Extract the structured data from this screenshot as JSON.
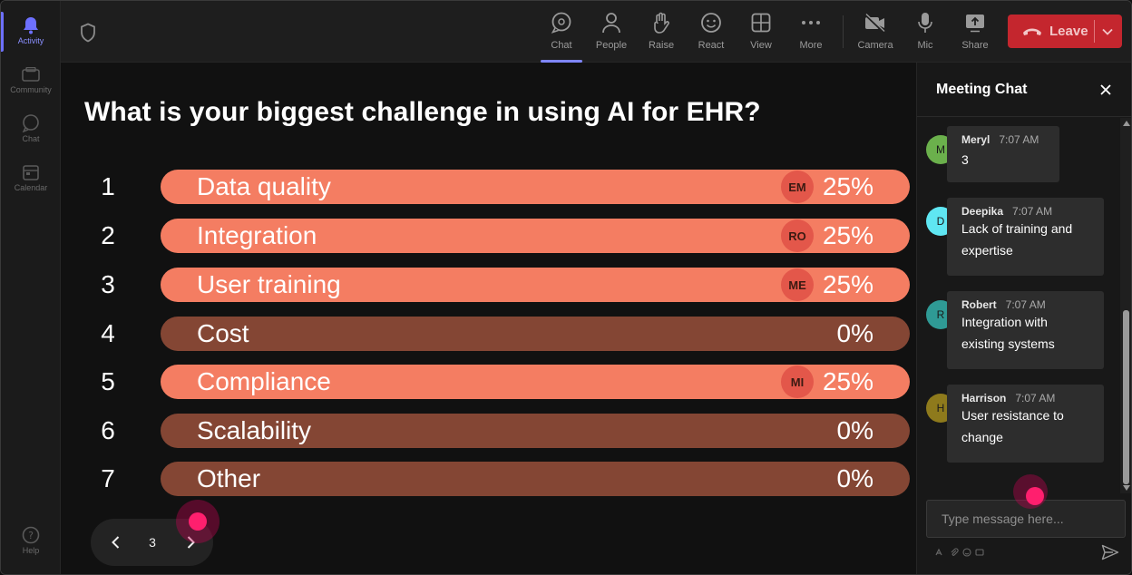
{
  "rail": {
    "items": [
      {
        "label": "Activity",
        "icon": "bell-icon"
      },
      {
        "label": "Community",
        "icon": "community-icon"
      },
      {
        "label": "Chat",
        "icon": "chat-icon"
      },
      {
        "label": "Calendar",
        "icon": "calendar-icon"
      }
    ],
    "help": {
      "label": "Help",
      "icon": "help-icon"
    }
  },
  "toolbar": {
    "buttons": [
      {
        "label": "Chat",
        "icon": "chat-icon"
      },
      {
        "label": "People",
        "icon": "people-icon"
      },
      {
        "label": "Raise",
        "icon": "raise-hand-icon"
      },
      {
        "label": "React",
        "icon": "smiley-icon"
      },
      {
        "label": "View",
        "icon": "grid-view-icon"
      },
      {
        "label": "More",
        "icon": "more-icon"
      },
      {
        "label": "Camera",
        "icon": "camera-off-icon"
      },
      {
        "label": "Mic",
        "icon": "mic-icon"
      },
      {
        "label": "Share",
        "icon": "share-icon"
      }
    ],
    "leave_label": "Leave"
  },
  "poll": {
    "question": "What is your biggest challenge in using AI for EHR?",
    "options": [
      {
        "num": "1",
        "label": "Data quality",
        "percent": "25%",
        "voter": "EM"
      },
      {
        "num": "2",
        "label": "Integration",
        "percent": "25%",
        "voter": "RO"
      },
      {
        "num": "3",
        "label": "User training",
        "percent": "25%",
        "voter": "ME"
      },
      {
        "num": "4",
        "label": "Cost",
        "percent": "0%",
        "voter": ""
      },
      {
        "num": "5",
        "label": "Compliance",
        "percent": "25%",
        "voter": "MI"
      },
      {
        "num": "6",
        "label": "Scalability",
        "percent": "0%",
        "voter": ""
      },
      {
        "num": "7",
        "label": "Other",
        "percent": "0%",
        "voter": ""
      }
    ],
    "page": "3"
  },
  "chat": {
    "title": "Meeting Chat",
    "messages": [
      {
        "initial": "M",
        "name": "Meryl",
        "time": "7:07 AM",
        "text": "3",
        "color": "#6bb04c"
      },
      {
        "initial": "D",
        "name": "Deepika",
        "time": "7:07 AM",
        "text": "Lack of training and expertise",
        "color": "#5fe6f2"
      },
      {
        "initial": "R",
        "name": "Robert",
        "time": "7:07 AM",
        "text": "Integration with existing systems",
        "color": "#2f9a95"
      },
      {
        "initial": "H",
        "name": "Harrison",
        "time": "7:07 AM",
        "text": "User resistance to change",
        "color": "#8e7a1c"
      }
    ],
    "placeholder": "Type message here..."
  },
  "colors": {
    "bar_voted": "#f47d62",
    "bar_empty": "#844634",
    "leave": "#c4262e",
    "accent": "#7f86ff"
  }
}
